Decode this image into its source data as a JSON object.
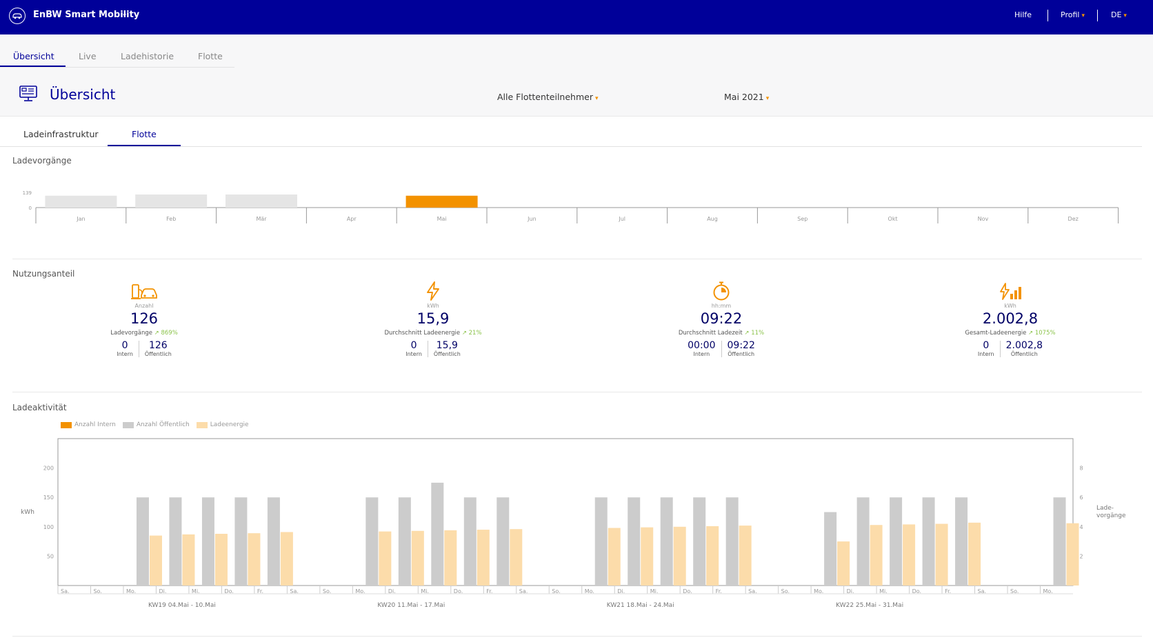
{
  "app": {
    "name": "EnBW Smart Mobility"
  },
  "topnav": {
    "help": "Hilfe",
    "profile": "Profil",
    "language": "DE"
  },
  "tabs": [
    {
      "label": "Übersicht",
      "active": true
    },
    {
      "label": "Live"
    },
    {
      "label": "Ladehistorie"
    },
    {
      "label": "Flotte"
    }
  ],
  "page": {
    "title": "Übersicht"
  },
  "filters": {
    "participants": "Alle Flottenteilnehmer",
    "month": "Mai 2021"
  },
  "subtabs": [
    {
      "label": "Ladeinfrastruktur"
    },
    {
      "label": "Flotte",
      "active": true
    }
  ],
  "sections": {
    "monthly": "Ladevorgänge",
    "usage": "Nutzungsanteil",
    "activity": "Ladeaktivität"
  },
  "kpis": [
    {
      "icon": "car-charging-icon",
      "unit": "Anzahl",
      "value": "126",
      "label": "Ladevorgänge",
      "trend": "↗ 869%",
      "intern": "0",
      "intern_label": "Intern",
      "public": "126",
      "public_label": "Öffentlich"
    },
    {
      "icon": "lightning-icon",
      "unit": "kWh",
      "value": "15,9",
      "label": "Durchschnitt Ladeenergie",
      "trend": "↗ 21%",
      "intern": "0",
      "intern_label": "Intern",
      "public": "15,9",
      "public_label": "Öffentlich"
    },
    {
      "icon": "stopwatch-icon",
      "unit": "hh:mm",
      "value": "09:22",
      "label": "Durchschnitt Ladezeit",
      "trend": "↗ 11%",
      "intern": "00:00",
      "intern_label": "Intern",
      "public": "09:22",
      "public_label": "Öffentlich"
    },
    {
      "icon": "energy-bars-icon",
      "unit": "kWh",
      "value": "2.002,8",
      "label": "Gesamt-Ladeenergie",
      "trend": "↗ 1075%",
      "intern": "0",
      "intern_label": "Intern",
      "public": "2.002,8",
      "public_label": "Öffentlich"
    }
  ],
  "colors": {
    "brand": "#000099",
    "accent": "#f39200",
    "grey_bar": "#cccccc",
    "energy_bar": "#fcdcaa",
    "trend": "#8bc34a"
  },
  "chart_data": [
    {
      "type": "bar",
      "title": "Ladevorgänge",
      "categories": [
        "Jan",
        "Feb",
        "Mär",
        "Apr",
        "Mai",
        "Jun",
        "Jul",
        "Aug",
        "Sep",
        "Okt",
        "Nov",
        "Dez"
      ],
      "values": [
        126,
        139,
        139,
        null,
        126,
        null,
        null,
        null,
        null,
        null,
        null,
        null
      ],
      "highlight": "Mai",
      "y_ticks": [
        "139",
        "0"
      ],
      "ylim": [
        0,
        139
      ]
    },
    {
      "type": "bar",
      "title": "Ladeaktivität",
      "legend": [
        "Anzahl Intern",
        "Anzahl Öffentlich",
        "Ladeenergie"
      ],
      "legend_placement": "top-left",
      "ylabel_left": "kWh",
      "ylabel_right": "Lade-vorgänge",
      "y_ticks_left": [
        "200",
        "150",
        "100",
        "50"
      ],
      "y_ticks_right": [
        "8",
        "6",
        "4",
        "2"
      ],
      "ylim_left": [
        0,
        250
      ],
      "ylim_right": [
        0,
        10
      ],
      "categories": [
        "Sa.",
        "So.",
        "Mo.",
        "Di.",
        "Mi.",
        "Do.",
        "Fr.",
        "Sa.",
        "So.",
        "Mo.",
        "Di.",
        "Mi.",
        "Do.",
        "Fr.",
        "Sa.",
        "So.",
        "Mo.",
        "Di.",
        "Mi.",
        "Do.",
        "Fr.",
        "Sa.",
        "So.",
        "Mo.",
        "Di.",
        "Mi.",
        "Do.",
        "Fr.",
        "Sa.",
        "So.",
        "Mo."
      ],
      "week_labels": [
        {
          "label": "KW19 04.Mai - 10.Mai",
          "start_index": 2
        },
        {
          "label": "KW20 11.Mai - 17.Mai",
          "start_index": 9
        },
        {
          "label": "KW21 18.Mai - 24.Mai",
          "start_index": 16
        },
        {
          "label": "KW22 25.Mai - 31.Mai",
          "start_index": 23
        }
      ],
      "series": [
        {
          "name": "Anzahl Intern",
          "axis": "right",
          "values": [
            0,
            0,
            0,
            0,
            0,
            0,
            0,
            0,
            0,
            0,
            0,
            0,
            0,
            0,
            0,
            0,
            0,
            0,
            0,
            0,
            0,
            0,
            0,
            0,
            0,
            0,
            0,
            0,
            0,
            0,
            0
          ]
        },
        {
          "name": "Anzahl Öffentlich",
          "axis": "right",
          "values": [
            0,
            0,
            6,
            6,
            6,
            6,
            6,
            0,
            0,
            6,
            6,
            7,
            6,
            6,
            0,
            0,
            6,
            6,
            6,
            6,
            6,
            0,
            0,
            5,
            6,
            6,
            6,
            6,
            0,
            0,
            6
          ]
        },
        {
          "name": "Ladeenergie",
          "axis": "left",
          "values": [
            0,
            0,
            85,
            87,
            88,
            89,
            91,
            0,
            0,
            92,
            93,
            94,
            95,
            96,
            0,
            0,
            98,
            99,
            100,
            101,
            102,
            0,
            0,
            75,
            103,
            104,
            105,
            107,
            0,
            0,
            106
          ]
        }
      ]
    }
  ]
}
